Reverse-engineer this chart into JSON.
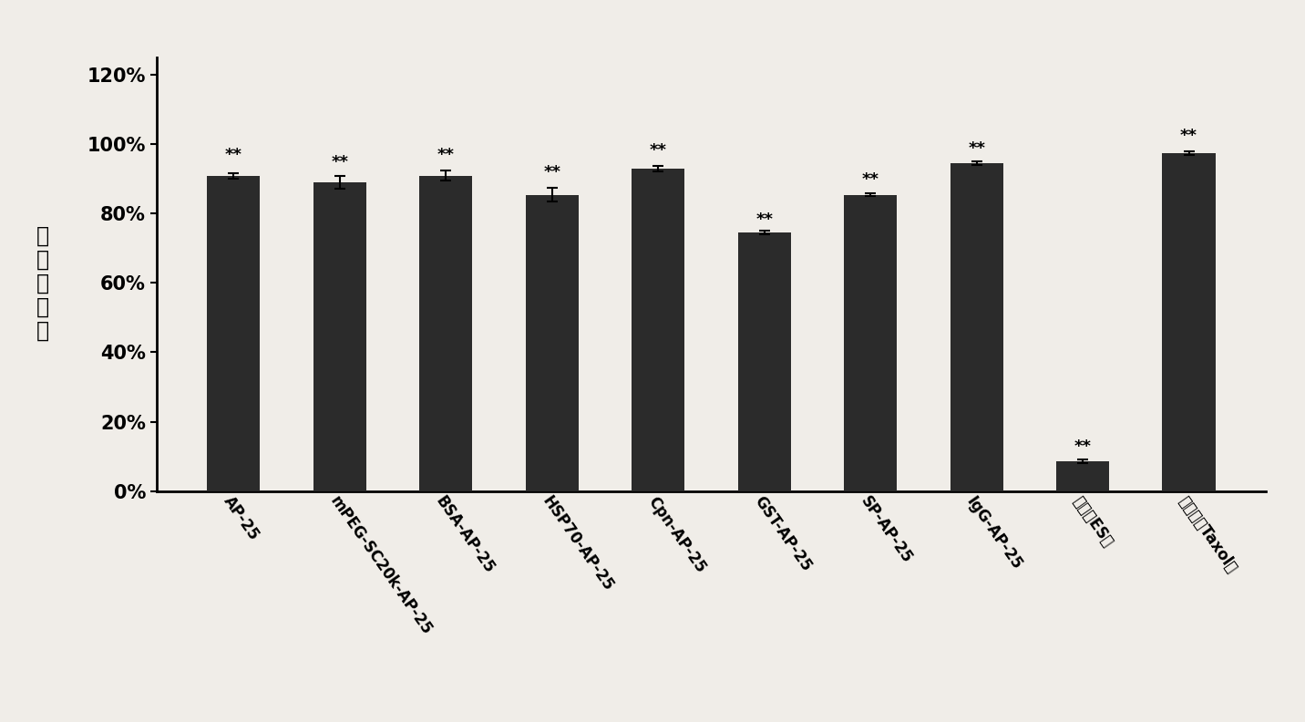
{
  "categories": [
    "AP-25",
    "mPEG-SC20k-AP-25",
    "BSA-AP-25",
    "HSP70-AP-25",
    "Cpn-AP-25",
    "GST-AP-25",
    "SP-AP-25",
    "IgG-AP-25",
    "萅贴（ES）",
    "紫杉醇（Taxol）"
  ],
  "values": [
    0.91,
    0.89,
    0.91,
    0.855,
    0.93,
    0.745,
    0.855,
    0.945,
    0.085,
    0.975
  ],
  "errors": [
    0.008,
    0.018,
    0.015,
    0.02,
    0.007,
    0.005,
    0.005,
    0.005,
    0.005,
    0.005
  ],
  "bar_color": "#2b2b2b",
  "background_color": "#f0ede8",
  "ylabel_chars": [
    "增",
    "殖",
    "抑",
    "制",
    "率"
  ],
  "yticks": [
    0.0,
    0.2,
    0.4,
    0.6,
    0.8,
    1.0,
    1.2
  ],
  "ytick_labels": [
    "0%",
    "20%",
    "40%",
    "60%",
    "80%",
    "100%",
    "120%"
  ],
  "ylim": [
    0,
    1.25
  ],
  "significance": [
    "**",
    "**",
    "**",
    "**",
    "**",
    "**",
    "**",
    "**",
    "**",
    "**"
  ],
  "sig_positions": [
    0.945,
    0.925,
    0.945,
    0.895,
    0.96,
    0.76,
    0.875,
    0.965,
    0.105,
    1.0
  ]
}
